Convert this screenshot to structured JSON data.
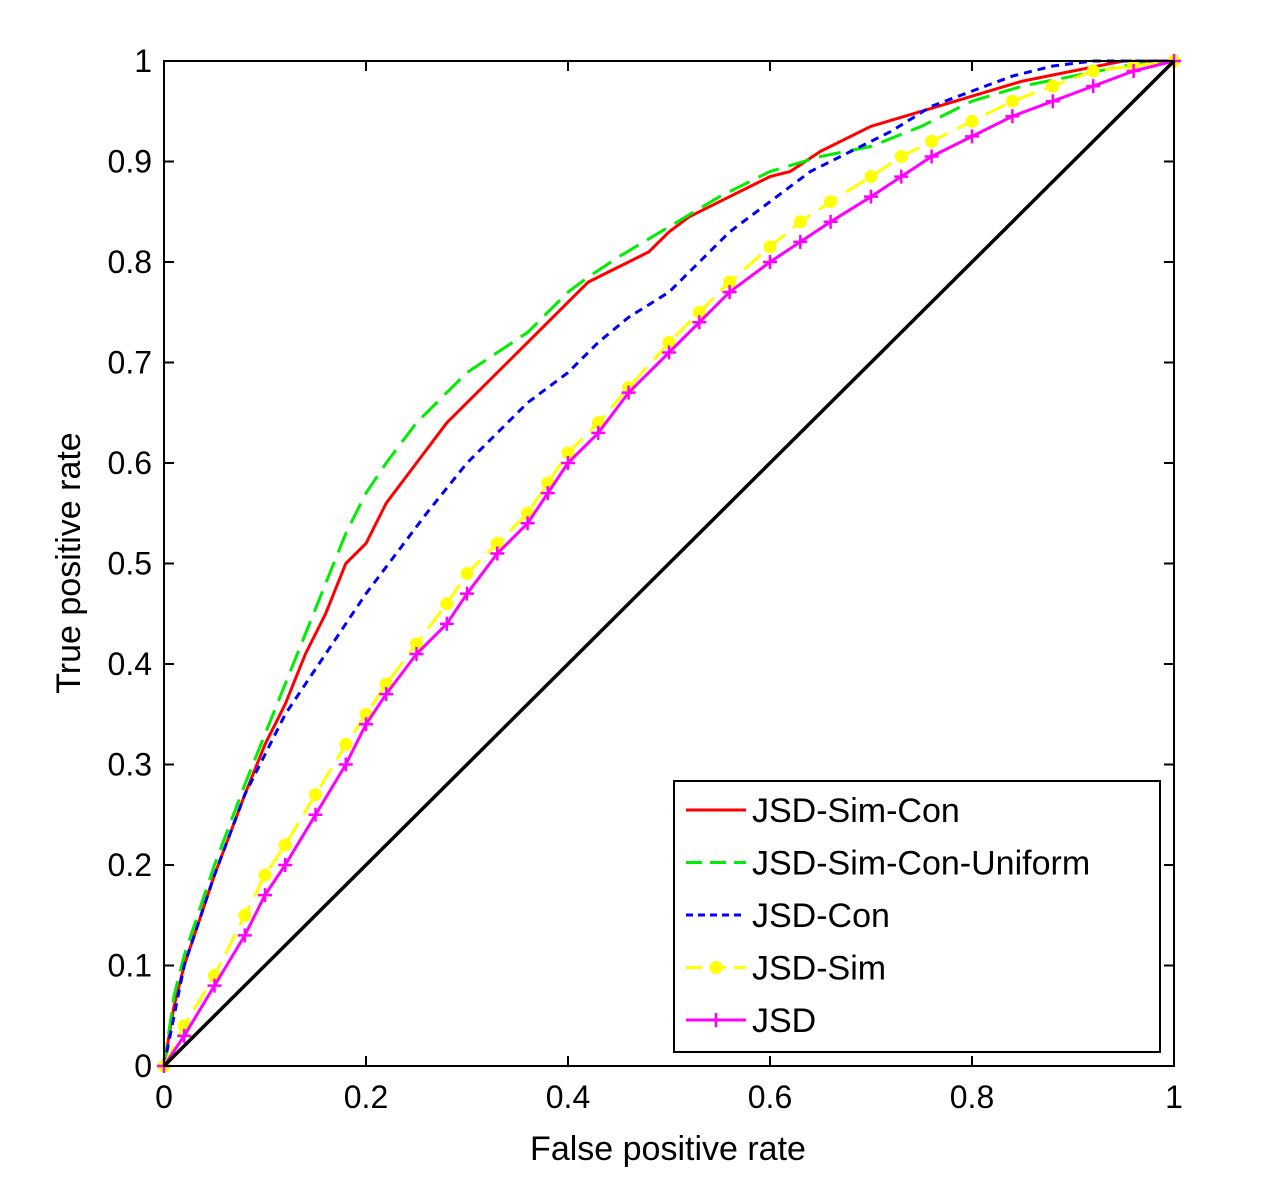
{
  "chart_data": {
    "type": "line",
    "title": "",
    "xlabel": "False positive rate",
    "ylabel": "True positive rate",
    "xlim": [
      0,
      1
    ],
    "ylim": [
      0,
      1
    ],
    "xticks": [
      0,
      0.2,
      0.4,
      0.6,
      0.8,
      1
    ],
    "yticks": [
      0,
      0.1,
      0.2,
      0.3,
      0.4,
      0.5,
      0.6,
      0.7,
      0.8,
      0.9,
      1
    ],
    "xtick_labels": [
      "0",
      "0.2",
      "0.4",
      "0.6",
      "0.8",
      "1"
    ],
    "ytick_labels": [
      "0",
      "0.1",
      "0.2",
      "0.3",
      "0.4",
      "0.5",
      "0.6",
      "0.7",
      "0.8",
      "0.9",
      "1"
    ],
    "grid": false,
    "legend_position": "bottom-right",
    "series": [
      {
        "name": "JSD-Sim-Con",
        "color": "#ff0000",
        "dash": "solid",
        "marker": "none",
        "x": [
          0,
          0.01,
          0.02,
          0.05,
          0.08,
          0.1,
          0.12,
          0.14,
          0.16,
          0.18,
          0.2,
          0.22,
          0.25,
          0.28,
          0.3,
          0.33,
          0.36,
          0.38,
          0.4,
          0.42,
          0.44,
          0.46,
          0.48,
          0.5,
          0.52,
          0.55,
          0.58,
          0.6,
          0.62,
          0.65,
          0.7,
          0.75,
          0.8,
          0.85,
          0.9,
          0.95,
          1.0
        ],
        "y": [
          0,
          0.06,
          0.1,
          0.19,
          0.27,
          0.32,
          0.36,
          0.41,
          0.45,
          0.5,
          0.52,
          0.56,
          0.6,
          0.64,
          0.66,
          0.69,
          0.72,
          0.74,
          0.76,
          0.78,
          0.79,
          0.8,
          0.81,
          0.83,
          0.845,
          0.86,
          0.875,
          0.885,
          0.89,
          0.91,
          0.935,
          0.95,
          0.965,
          0.98,
          0.99,
          1.0,
          1.0
        ]
      },
      {
        "name": "JSD-Sim-Con-Uniform",
        "color": "#00ee00",
        "dash": "long",
        "marker": "none",
        "x": [
          0,
          0.01,
          0.02,
          0.05,
          0.08,
          0.1,
          0.12,
          0.14,
          0.16,
          0.18,
          0.2,
          0.22,
          0.25,
          0.28,
          0.3,
          0.33,
          0.36,
          0.4,
          0.42,
          0.45,
          0.5,
          0.55,
          0.6,
          0.65,
          0.7,
          0.75,
          0.8,
          0.85,
          0.9,
          0.95,
          1.0
        ],
        "y": [
          0,
          0.07,
          0.11,
          0.2,
          0.28,
          0.33,
          0.38,
          0.43,
          0.48,
          0.53,
          0.57,
          0.6,
          0.64,
          0.67,
          0.69,
          0.71,
          0.73,
          0.77,
          0.785,
          0.805,
          0.835,
          0.865,
          0.89,
          0.905,
          0.915,
          0.935,
          0.96,
          0.975,
          0.985,
          0.995,
          1.0
        ]
      },
      {
        "name": "JSD-Con",
        "color": "#0000ff",
        "dash": "short",
        "marker": "none",
        "x": [
          0,
          0.01,
          0.02,
          0.05,
          0.08,
          0.1,
          0.12,
          0.14,
          0.16,
          0.18,
          0.2,
          0.23,
          0.26,
          0.3,
          0.33,
          0.36,
          0.4,
          0.43,
          0.46,
          0.5,
          0.53,
          0.56,
          0.6,
          0.64,
          0.68,
          0.72,
          0.76,
          0.8,
          0.84,
          0.88,
          0.92,
          0.96,
          1.0
        ],
        "y": [
          0,
          0.05,
          0.1,
          0.19,
          0.27,
          0.31,
          0.35,
          0.38,
          0.41,
          0.44,
          0.47,
          0.51,
          0.55,
          0.6,
          0.63,
          0.66,
          0.69,
          0.72,
          0.745,
          0.77,
          0.8,
          0.83,
          0.86,
          0.89,
          0.91,
          0.93,
          0.955,
          0.97,
          0.985,
          0.995,
          1.0,
          1.0,
          1.0
        ]
      },
      {
        "name": "JSD-Sim",
        "color": "#ffff00",
        "dash": "long",
        "marker": "dot",
        "x": [
          0,
          0.02,
          0.05,
          0.08,
          0.1,
          0.12,
          0.15,
          0.18,
          0.2,
          0.22,
          0.25,
          0.28,
          0.3,
          0.33,
          0.36,
          0.38,
          0.4,
          0.43,
          0.46,
          0.5,
          0.53,
          0.56,
          0.6,
          0.63,
          0.66,
          0.7,
          0.73,
          0.76,
          0.8,
          0.84,
          0.88,
          0.92,
          0.96,
          1.0
        ],
        "y": [
          0,
          0.04,
          0.09,
          0.15,
          0.19,
          0.22,
          0.27,
          0.32,
          0.35,
          0.38,
          0.42,
          0.46,
          0.49,
          0.52,
          0.55,
          0.58,
          0.61,
          0.64,
          0.675,
          0.72,
          0.75,
          0.78,
          0.815,
          0.84,
          0.86,
          0.885,
          0.905,
          0.92,
          0.94,
          0.96,
          0.975,
          0.99,
          0.995,
          1.0
        ]
      },
      {
        "name": "JSD",
        "color": "#ff00ff",
        "dash": "solid",
        "marker": "plus",
        "x": [
          0,
          0.02,
          0.05,
          0.08,
          0.1,
          0.12,
          0.15,
          0.18,
          0.2,
          0.22,
          0.25,
          0.28,
          0.3,
          0.33,
          0.36,
          0.38,
          0.4,
          0.43,
          0.46,
          0.5,
          0.53,
          0.56,
          0.6,
          0.63,
          0.66,
          0.7,
          0.73,
          0.76,
          0.8,
          0.84,
          0.88,
          0.92,
          0.96,
          1.0
        ],
        "y": [
          0,
          0.03,
          0.08,
          0.13,
          0.17,
          0.2,
          0.25,
          0.3,
          0.34,
          0.37,
          0.41,
          0.44,
          0.47,
          0.51,
          0.54,
          0.57,
          0.6,
          0.63,
          0.67,
          0.71,
          0.74,
          0.77,
          0.8,
          0.82,
          0.84,
          0.865,
          0.885,
          0.905,
          0.925,
          0.945,
          0.96,
          0.975,
          0.99,
          1.0
        ]
      },
      {
        "color": "#000000",
        "dash": "solid",
        "marker": "none",
        "x": [
          0,
          1
        ],
        "y": [
          0,
          1
        ]
      }
    ]
  }
}
